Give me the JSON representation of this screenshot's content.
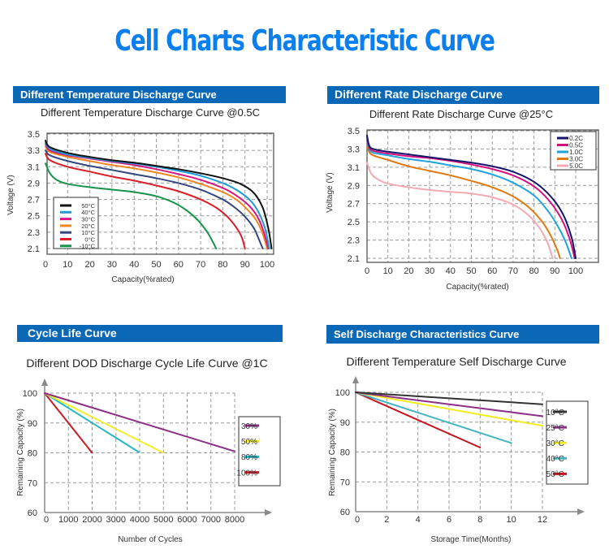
{
  "page": {
    "title": "Cell Charts Characteristic Curve"
  },
  "chart_data": [
    {
      "id": "temp",
      "header": "Different Temperature Discharge Curve",
      "type": "line",
      "title": "Different Temperature Discharge Curve @0.5C",
      "xlabel": "Capacity(%rated)",
      "ylabel": "Voltage (V)",
      "xlim": [
        0,
        103
      ],
      "ylim": [
        2.05,
        3.5
      ],
      "xticks": [
        0,
        10,
        20,
        30,
        40,
        50,
        60,
        70,
        80,
        90,
        100
      ],
      "yticks": [
        2.1,
        2.3,
        2.5,
        2.7,
        2.9,
        3.1,
        3.3,
        3.5
      ],
      "grid": true,
      "legend_position": "bottom-left",
      "series": [
        {
          "name": "50°C",
          "color": "#111111",
          "x": [
            0,
            2,
            10,
            20,
            30,
            40,
            50,
            60,
            70,
            80,
            88,
            94,
            98,
            100.5,
            102
          ],
          "y": [
            3.42,
            3.34,
            3.27,
            3.22,
            3.18,
            3.15,
            3.11,
            3.07,
            3.02,
            2.96,
            2.89,
            2.78,
            2.6,
            2.35,
            2.1
          ]
        },
        {
          "name": "40°C",
          "color": "#1f9bd8",
          "x": [
            0,
            2,
            10,
            20,
            30,
            40,
            50,
            60,
            70,
            80,
            86,
            92,
            96,
            99,
            101
          ],
          "y": [
            3.4,
            3.32,
            3.25,
            3.21,
            3.17,
            3.14,
            3.1,
            3.05,
            2.99,
            2.9,
            2.82,
            2.7,
            2.55,
            2.35,
            2.1
          ]
        },
        {
          "name": "30°C",
          "color": "#d6187f",
          "x": [
            0,
            2,
            10,
            20,
            30,
            40,
            50,
            60,
            70,
            80,
            86,
            92,
            96,
            98.5,
            100.5
          ],
          "y": [
            3.38,
            3.3,
            3.24,
            3.2,
            3.16,
            3.12,
            3.07,
            3.01,
            2.94,
            2.84,
            2.75,
            2.62,
            2.47,
            2.3,
            2.1
          ]
        },
        {
          "name": "20°C",
          "color": "#f0861f",
          "x": [
            0,
            2,
            10,
            20,
            30,
            40,
            50,
            60,
            70,
            80,
            86,
            91,
            95,
            98,
            100
          ],
          "y": [
            3.35,
            3.28,
            3.22,
            3.17,
            3.12,
            3.08,
            3.03,
            2.97,
            2.89,
            2.79,
            2.7,
            2.58,
            2.45,
            2.28,
            2.1
          ]
        },
        {
          "name": "10°C",
          "color": "#34467f",
          "x": [
            0,
            2,
            10,
            20,
            30,
            40,
            50,
            60,
            70,
            80,
            85,
            90,
            94,
            96,
            98
          ],
          "y": [
            3.3,
            3.24,
            3.17,
            3.11,
            3.06,
            3.01,
            2.96,
            2.9,
            2.82,
            2.7,
            2.61,
            2.49,
            2.35,
            2.23,
            2.1
          ]
        },
        {
          "name": "0°C",
          "color": "#d91e2a",
          "x": [
            0,
            2,
            10,
            20,
            30,
            40,
            50,
            60,
            70,
            77,
            82,
            86,
            88.5,
            90
          ],
          "y": [
            3.26,
            3.18,
            3.1,
            3.04,
            2.98,
            2.93,
            2.87,
            2.8,
            2.7,
            2.6,
            2.49,
            2.36,
            2.24,
            2.1
          ]
        },
        {
          "name": "-10°C",
          "color": "#17924a",
          "x": [
            0,
            2,
            5,
            10,
            20,
            30,
            40,
            50,
            58,
            64,
            69,
            73,
            75.5,
            77
          ],
          "y": [
            3.14,
            3.02,
            2.94,
            2.89,
            2.85,
            2.82,
            2.79,
            2.74,
            2.66,
            2.56,
            2.44,
            2.3,
            2.18,
            2.1
          ]
        }
      ]
    },
    {
      "id": "rate",
      "header": "Different Rate Discharge Curve",
      "type": "line",
      "title": "Different Rate Discharge Curve @25°C",
      "xlabel": "Capacity(%rated)",
      "ylabel": "Voltage (V)",
      "xlim": [
        0,
        110
      ],
      "ylim": [
        2.1,
        3.5
      ],
      "xticks": [
        0,
        10,
        20,
        30,
        40,
        50,
        60,
        70,
        80,
        90,
        100
      ],
      "yticks": [
        2.1,
        2.3,
        2.5,
        2.7,
        2.9,
        3.1,
        3.3,
        3.5
      ],
      "grid": true,
      "legend_position": "top-right",
      "series": [
        {
          "name": "0.2C",
          "color": "#14166b",
          "x": [
            0,
            1,
            3,
            10,
            20,
            30,
            40,
            50,
            60,
            70,
            80,
            88,
            94,
            98,
            100
          ],
          "y": [
            3.45,
            3.34,
            3.3,
            3.27,
            3.24,
            3.21,
            3.18,
            3.15,
            3.11,
            3.05,
            2.94,
            2.78,
            2.58,
            2.33,
            2.1
          ]
        },
        {
          "name": "0.5C",
          "color": "#d3127f",
          "x": [
            0,
            1,
            3,
            10,
            20,
            30,
            40,
            50,
            60,
            70,
            80,
            87,
            93,
            97,
            99.5
          ],
          "y": [
            3.43,
            3.32,
            3.28,
            3.25,
            3.22,
            3.2,
            3.17,
            3.13,
            3.08,
            3.01,
            2.89,
            2.74,
            2.54,
            2.32,
            2.1
          ]
        },
        {
          "name": "1.0C",
          "color": "#1fa3dc",
          "x": [
            0,
            1,
            3,
            10,
            20,
            30,
            40,
            50,
            60,
            70,
            80,
            86,
            91,
            95,
            98
          ],
          "y": [
            3.4,
            3.3,
            3.26,
            3.23,
            3.19,
            3.16,
            3.12,
            3.08,
            3.02,
            2.93,
            2.79,
            2.64,
            2.47,
            2.29,
            2.1
          ]
        },
        {
          "name": "3.0C",
          "color": "#e07a10",
          "x": [
            0,
            1,
            3,
            10,
            20,
            30,
            40,
            50,
            60,
            70,
            78,
            84,
            88,
            91,
            92.5
          ],
          "y": [
            3.35,
            3.27,
            3.23,
            3.18,
            3.11,
            3.06,
            3.01,
            2.95,
            2.88,
            2.78,
            2.65,
            2.5,
            2.35,
            2.2,
            2.1
          ]
        },
        {
          "name": "5.0C",
          "color": "#f2aab4",
          "x": [
            0,
            2,
            5,
            10,
            20,
            30,
            40,
            50,
            60,
            70,
            78,
            83,
            86.5,
            89
          ],
          "y": [
            3.15,
            3.03,
            2.97,
            2.92,
            2.88,
            2.85,
            2.83,
            2.81,
            2.77,
            2.69,
            2.56,
            2.42,
            2.27,
            2.1
          ]
        }
      ]
    },
    {
      "id": "cycle",
      "header": "Cycle Life Curve",
      "type": "line",
      "title": "Different DOD Discharge Cycle Life Curve @1C",
      "xlabel": "Number of Cycles",
      "ylabel": "Remaining Capacity (%)",
      "xlim": [
        0,
        8000
      ],
      "ylim": [
        60,
        100
      ],
      "xticks": [
        0,
        1000,
        2000,
        3000,
        4000,
        5000,
        6000,
        7000,
        8000
      ],
      "yticks": [
        60,
        70,
        80,
        90,
        100
      ],
      "grid": true,
      "legend_position": "right",
      "series": [
        {
          "name": "30%",
          "color": "#8b2f86",
          "x": [
            0,
            8000
          ],
          "y": [
            100,
            80.5
          ]
        },
        {
          "name": "50%",
          "color": "#f4ee25",
          "x": [
            0,
            5000
          ],
          "y": [
            100,
            80
          ]
        },
        {
          "name": "80%",
          "color": "#27b6c6",
          "x": [
            0,
            3950
          ],
          "y": [
            100,
            80.3
          ]
        },
        {
          "name": "100%",
          "color": "#c81d25",
          "x": [
            0,
            2000
          ],
          "y": [
            100,
            80
          ]
        }
      ]
    },
    {
      "id": "self",
      "header": "Self Discharge Characteristics Curve",
      "type": "line",
      "title": "Different Temperature Self Discharge Curve",
      "xlabel": "Storage Time(Months)",
      "ylabel": "Remaining Capacity (%)",
      "xlim": [
        0,
        12
      ],
      "ylim": [
        60,
        100
      ],
      "xticks": [
        0,
        2,
        4,
        6,
        8,
        10,
        12
      ],
      "yticks": [
        60,
        70,
        80,
        90,
        100
      ],
      "grid": true,
      "legend_position": "right",
      "series": [
        {
          "name": "10°C",
          "color": "#333333",
          "x": [
            0,
            12
          ],
          "y": [
            100,
            96
          ]
        },
        {
          "name": "25°C",
          "color": "#8e2f8a",
          "x": [
            0,
            12
          ],
          "y": [
            100,
            92
          ]
        },
        {
          "name": "30°C",
          "color": "#f2ec1e",
          "x": [
            0,
            12
          ],
          "y": [
            100,
            88.8
          ]
        },
        {
          "name": "40°C",
          "color": "#46b4c0",
          "x": [
            0,
            10
          ],
          "y": [
            100,
            83
          ]
        },
        {
          "name": "50°C",
          "color": "#c8101c",
          "x": [
            0,
            8
          ],
          "y": [
            100,
            81.5
          ]
        }
      ]
    }
  ]
}
